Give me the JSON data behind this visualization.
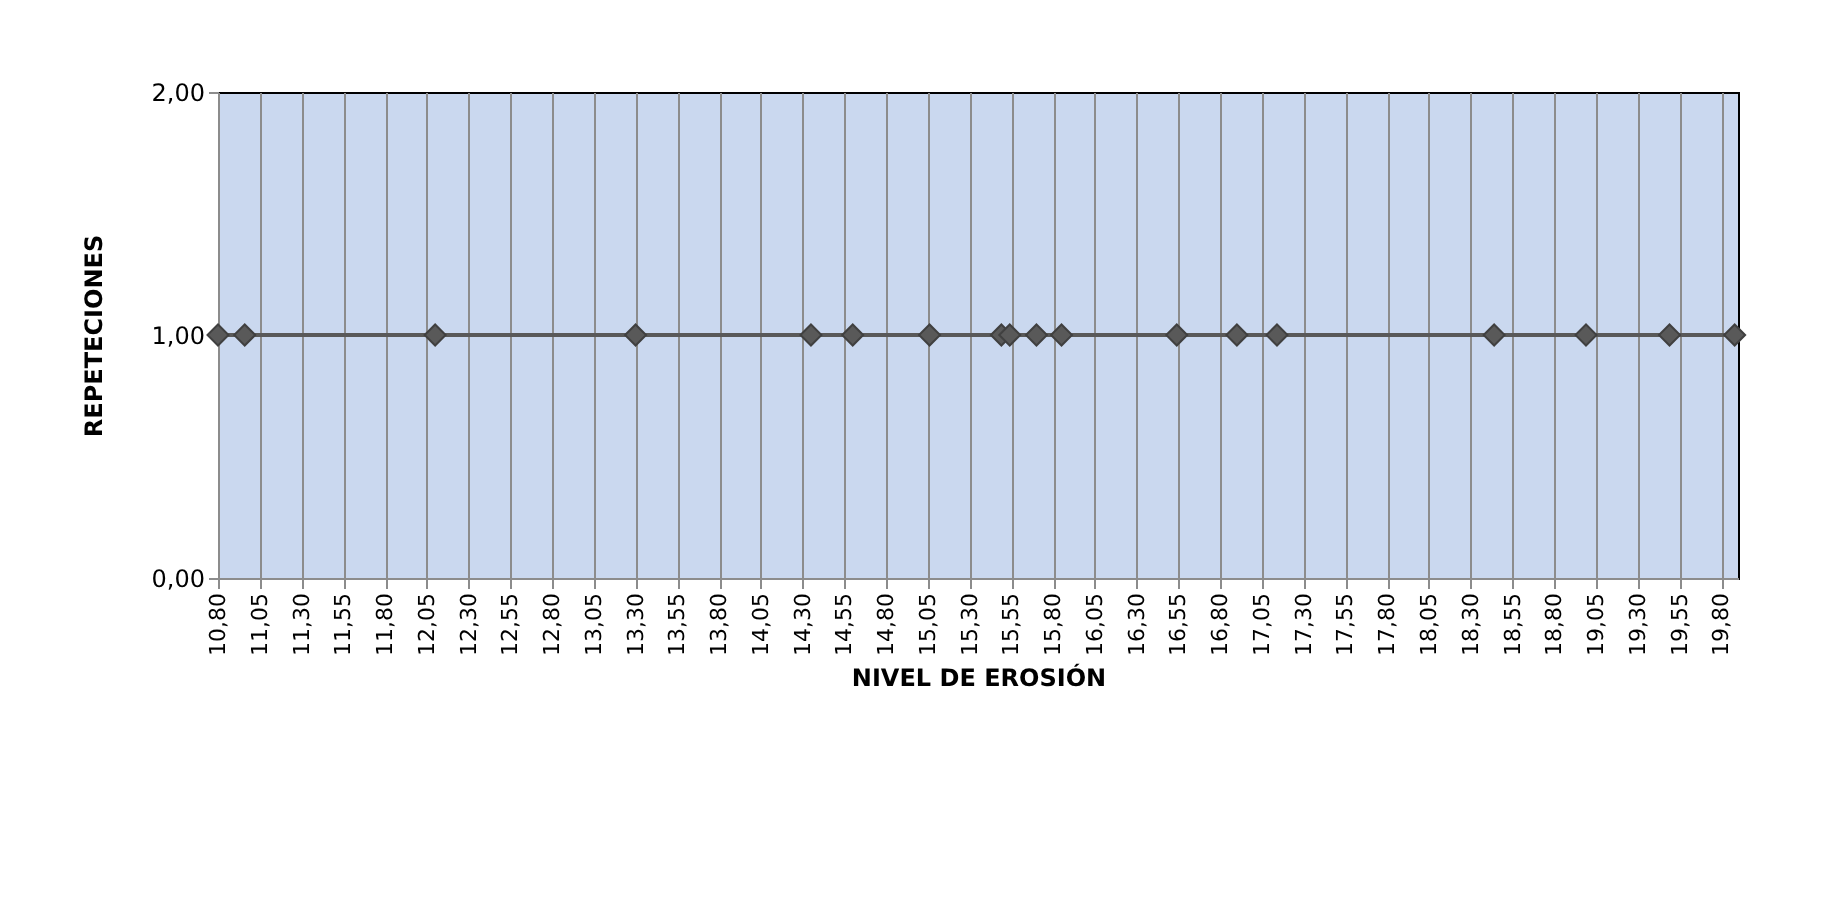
{
  "chart_data": {
    "type": "line",
    "xlabel": "NIVEL DE EROSIÓN",
    "ylabel": "REPETECIONES",
    "x": [
      10.8,
      10.96,
      12.1,
      13.3,
      14.35,
      14.6,
      15.06,
      15.49,
      15.54,
      15.7,
      15.85,
      16.54,
      16.9,
      17.14,
      18.44,
      18.99,
      19.49,
      19.88
    ],
    "series": [
      {
        "color": "#595959",
        "values": [
          1,
          1,
          1,
          1,
          1,
          1,
          1,
          1,
          1,
          1,
          1,
          1,
          1,
          1,
          1,
          1,
          1,
          1
        ]
      }
    ],
    "xlim": [
      10.8,
      19.9
    ],
    "xticks": [
      {
        "value": 10.8,
        "label": "10,80"
      },
      {
        "value": 11.05,
        "label": "11,05"
      },
      {
        "value": 11.3,
        "label": "11,30"
      },
      {
        "value": 11.55,
        "label": "11,55"
      },
      {
        "value": 11.8,
        "label": "11,80"
      },
      {
        "value": 12.05,
        "label": "12,05"
      },
      {
        "value": 12.3,
        "label": "12,30"
      },
      {
        "value": 12.55,
        "label": "12,55"
      },
      {
        "value": 12.8,
        "label": "12,80"
      },
      {
        "value": 13.05,
        "label": "13,05"
      },
      {
        "value": 13.3,
        "label": "13,30"
      },
      {
        "value": 13.55,
        "label": "13,55"
      },
      {
        "value": 13.8,
        "label": "13,80"
      },
      {
        "value": 14.05,
        "label": "14,05"
      },
      {
        "value": 14.3,
        "label": "14,30"
      },
      {
        "value": 14.55,
        "label": "14,55"
      },
      {
        "value": 14.8,
        "label": "14,80"
      },
      {
        "value": 15.05,
        "label": "15,05"
      },
      {
        "value": 15.3,
        "label": "15,30"
      },
      {
        "value": 15.55,
        "label": "15,55"
      },
      {
        "value": 15.8,
        "label": "15,80"
      },
      {
        "value": 16.05,
        "label": "16,05"
      },
      {
        "value": 16.3,
        "label": "16,30"
      },
      {
        "value": 16.55,
        "label": "16,55"
      },
      {
        "value": 16.8,
        "label": "16,80"
      },
      {
        "value": 17.05,
        "label": "17,05"
      },
      {
        "value": 17.3,
        "label": "17,30"
      },
      {
        "value": 17.55,
        "label": "17,55"
      },
      {
        "value": 17.8,
        "label": "17,80"
      },
      {
        "value": 18.05,
        "label": "18,05"
      },
      {
        "value": 18.3,
        "label": "18,30"
      },
      {
        "value": 18.55,
        "label": "18,55"
      },
      {
        "value": 18.8,
        "label": "18,80"
      },
      {
        "value": 19.05,
        "label": "19,05"
      },
      {
        "value": 19.3,
        "label": "19,30"
      },
      {
        "value": 19.55,
        "label": "19,55"
      },
      {
        "value": 19.8,
        "label": "19,80"
      }
    ],
    "ylim": [
      0,
      2
    ],
    "yticks": [
      {
        "value": 0,
        "label": "0,00"
      },
      {
        "value": 1,
        "label": "1,00"
      },
      {
        "value": 2,
        "label": "2,00"
      }
    ],
    "grid": "x",
    "marker": "diamond",
    "line_style": "solid"
  }
}
